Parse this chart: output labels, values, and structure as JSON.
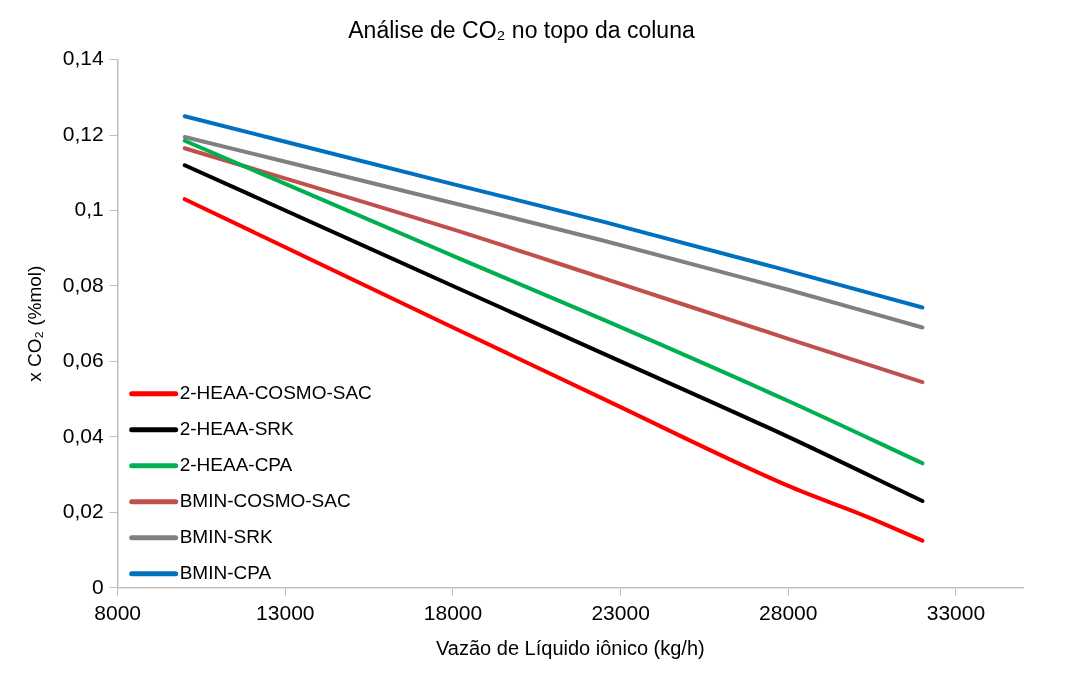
{
  "chart_data": {
    "type": "line",
    "title": "Análise de CO₂ no topo da coluna",
    "xlabel": "Vazão de Líquido iônico (kg/h)",
    "ylabel": "x CO₂ (%mol)",
    "x": [
      10000,
      18000,
      22500,
      28000,
      32000
    ],
    "series": [
      {
        "name": "2-HEAA-COSMO-SAC",
        "color": "#ff0000",
        "x": [
          10000,
          18000,
          22500,
          28000,
          30300,
          32000
        ],
        "values": [
          0.103,
          0.069,
          0.05,
          0.027,
          0.019,
          0.0125
        ]
      },
      {
        "name": "2-HEAA-SRK",
        "color": "#000000",
        "values": [
          0.112,
          0.08,
          0.062,
          0.04,
          0.023
        ]
      },
      {
        "name": "2-HEAA-CPA",
        "color": "#00b050",
        "values": [
          0.1185,
          0.088,
          0.071,
          0.0495,
          0.033
        ]
      },
      {
        "name": "BMIN-COSMO-SAC",
        "color": "#c0504d",
        "values": [
          0.1165,
          0.095,
          0.082,
          0.066,
          0.0545
        ]
      },
      {
        "name": "BMIN-SRK",
        "color": "#808080",
        "values": [
          0.1195,
          0.102,
          0.092,
          0.079,
          0.069
        ]
      },
      {
        "name": "BMIN-CPA",
        "color": "#0070c0",
        "values": [
          0.125,
          0.107,
          0.097,
          0.084,
          0.0743
        ]
      }
    ],
    "xlim": [
      8000,
      35000
    ],
    "xticks": [
      8000,
      13000,
      18000,
      23000,
      28000,
      33000
    ],
    "ylim": [
      0,
      0.14
    ],
    "yticks": [
      0,
      {
        "value": 0.02,
        "label": "0,02"
      },
      {
        "value": 0.04,
        "label": "0,04"
      },
      {
        "value": 0.06,
        "label": "0,06"
      },
      {
        "value": 0.08,
        "label": "0,08"
      },
      {
        "value": 0.1,
        "label": "0,1"
      },
      {
        "value": 0.12,
        "label": "0,12"
      },
      {
        "value": 0.14,
        "label": "0,14"
      }
    ],
    "grid": false,
    "legend": "bottom left"
  }
}
